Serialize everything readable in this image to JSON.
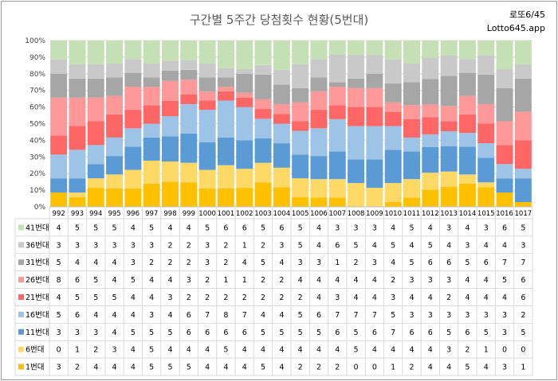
{
  "chart_data": {
    "type": "bar",
    "stacked": "percent",
    "title": "구간별 5주간 당첨횟수 현황(5번대)",
    "brand_line1": "로또6/45",
    "brand_line2": "Lotto645.app",
    "ylim": [
      0,
      100
    ],
    "yticks": [
      "0%",
      "10%",
      "20%",
      "30%",
      "40%",
      "50%",
      "60%",
      "70%",
      "80%",
      "90%",
      "100%"
    ],
    "grid": true,
    "legend": "data-table-below",
    "categories": [
      "992",
      "993",
      "994",
      "995",
      "996",
      "997",
      "998",
      "999",
      "1000",
      "1001",
      "1002",
      "1003",
      "1004",
      "1005",
      "1006",
      "1007",
      "1008",
      "1009",
      "1010",
      "1011",
      "1012",
      "1013",
      "1014",
      "1015",
      "1016",
      "1017"
    ],
    "series": [
      {
        "name": "1번대",
        "color": "#ffc000",
        "values": [
          3,
          2,
          4,
          4,
          4,
          5,
          5,
          5,
          4,
          4,
          4,
          5,
          4,
          2,
          2,
          2,
          0,
          0,
          1,
          2,
          4,
          4,
          5,
          4,
          3,
          1
        ]
      },
      {
        "name": "6번대",
        "color": "#ffd966",
        "values": [
          0,
          1,
          2,
          3,
          4,
          5,
          4,
          4,
          4,
          5,
          4,
          4,
          4,
          4,
          4,
          4,
          5,
          4,
          4,
          4,
          4,
          3,
          2,
          1,
          0,
          0
        ]
      },
      {
        "name": "11번대",
        "color": "#5b9bd5",
        "values": [
          3,
          3,
          3,
          4,
          5,
          5,
          5,
          6,
          6,
          6,
          6,
          5,
          5,
          5,
          5,
          6,
          5,
          6,
          7,
          6,
          6,
          5,
          6,
          5,
          3,
          5
        ]
      },
      {
        "name": "16번대",
        "color": "#9dc3e6",
        "values": [
          5,
          6,
          4,
          4,
          4,
          3,
          4,
          6,
          7,
          8,
          7,
          4,
          4,
          5,
          6,
          7,
          7,
          7,
          5,
          3,
          3,
          3,
          3,
          3,
          3,
          2
        ]
      },
      {
        "name": "21번대",
        "color": "#ff6666",
        "values": [
          4,
          5,
          5,
          5,
          4,
          4,
          3,
          2,
          2,
          2,
          2,
          2,
          2,
          2,
          4,
          3,
          4,
          4,
          3,
          4,
          4,
          2,
          4,
          4,
          4,
          6
        ]
      },
      {
        "name": "26번대",
        "color": "#ff9999",
        "values": [
          8,
          6,
          5,
          4,
          5,
          4,
          4,
          3,
          2,
          1,
          1,
          2,
          2,
          4,
          4,
          4,
          4,
          4,
          2,
          3,
          3,
          3,
          4,
          4,
          5,
          6
        ]
      },
      {
        "name": "31번대",
        "color": "#a6a6a6",
        "values": [
          5,
          4,
          4,
          4,
          3,
          2,
          2,
          2,
          3,
          2,
          4,
          5,
          4,
          3,
          3,
          1,
          2,
          3,
          4,
          5,
          6,
          6,
          5,
          6,
          7,
          7
        ]
      },
      {
        "name": "36번대",
        "color": "#c9c9c9",
        "values": [
          3,
          3,
          3,
          3,
          3,
          3,
          2,
          2,
          3,
          2,
          1,
          2,
          3,
          5,
          4,
          6,
          5,
          4,
          5,
          4,
          5,
          4,
          3,
          4,
          4,
          3
        ]
      },
      {
        "name": "41번대",
        "color": "#c5e0b4",
        "values": [
          4,
          5,
          5,
          5,
          4,
          5,
          4,
          4,
          5,
          6,
          6,
          5,
          6,
          5,
          4,
          3,
          3,
          3,
          4,
          5,
          4,
          3,
          4,
          3,
          6,
          5
        ]
      }
    ]
  }
}
